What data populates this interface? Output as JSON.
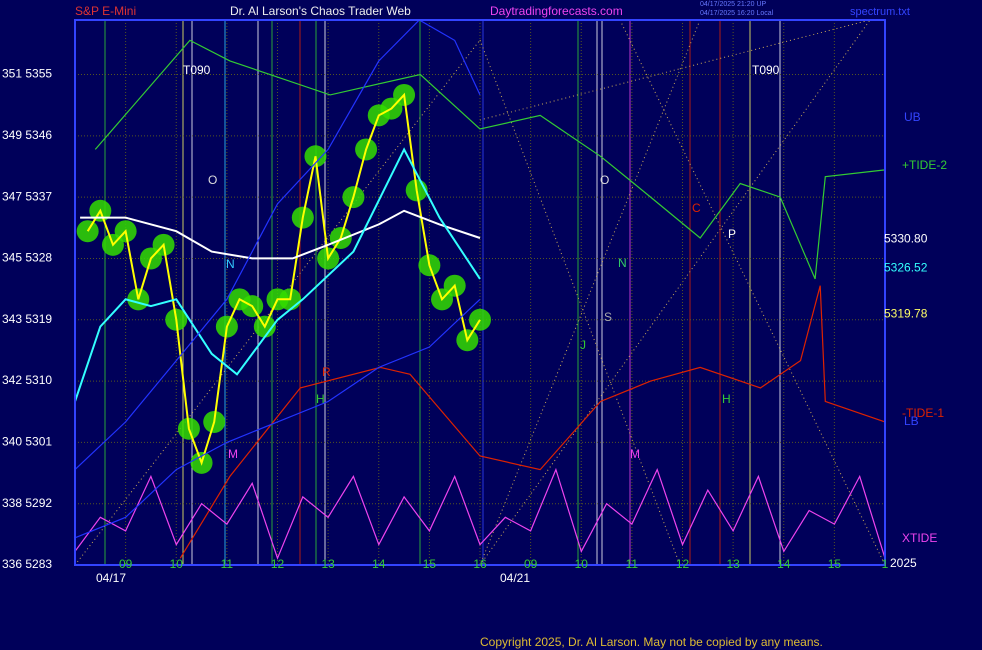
{
  "chart_data": {
    "type": "line",
    "symbol": "S&P E-Mini",
    "title": "Dr. Al Larson's Chaos Trader Web",
    "site": "Daytradingforecasts.com",
    "stamps": [
      "04/17/2025 21:20 UP",
      "04/17/2025 16:20 Local"
    ],
    "file": "spectrum.txt",
    "copyright": "Copyright 2025, Dr. Al Larson. May not be copied by any means.",
    "date_labels": [
      "04/17",
      "04/21"
    ],
    "year": "2025",
    "xlim": [
      0,
      16
    ],
    "ylim": [
      5283,
      5363
    ],
    "grid": true,
    "xticks": [
      {
        "value": 1,
        "label": "09"
      },
      {
        "value": 2,
        "label": "10"
      },
      {
        "value": 3,
        "label": "11"
      },
      {
        "value": 4,
        "label": "12"
      },
      {
        "value": 5,
        "label": "13"
      },
      {
        "value": 6,
        "label": "14"
      },
      {
        "value": 7,
        "label": "15"
      },
      {
        "value": 8,
        "label": "16"
      },
      {
        "value": 9,
        "label": "09"
      },
      {
        "value": 10,
        "label": "10"
      },
      {
        "value": 11,
        "label": "11"
      },
      {
        "value": 12,
        "label": "12"
      },
      {
        "value": 13,
        "label": "13"
      },
      {
        "value": 14,
        "label": "14"
      },
      {
        "value": 15,
        "label": "15"
      },
      {
        "value": 16,
        "label": "1"
      }
    ],
    "yticks": [
      {
        "value": 5283,
        "label": "336 5283"
      },
      {
        "value": 5292,
        "label": "338 5292"
      },
      {
        "value": 5301,
        "label": "340 5301"
      },
      {
        "value": 5310,
        "label": "342 5310"
      },
      {
        "value": 5319,
        "label": "343 5319"
      },
      {
        "value": 5328,
        "label": "345 5328"
      },
      {
        "value": 5337,
        "label": "347 5337"
      },
      {
        "value": 5346,
        "label": "349 5346"
      },
      {
        "value": 5355,
        "label": "351 5355"
      }
    ],
    "last_values": [
      {
        "value": 5330.8,
        "label": "5330.80",
        "color": "#ffffff"
      },
      {
        "value": 5326.52,
        "label": "5326.52",
        "color": "#33ffff"
      },
      {
        "value": 5319.78,
        "label": "5319.78",
        "color": "#ffff66"
      }
    ],
    "annotations": [
      "T090",
      "T090",
      "O",
      "O",
      "C",
      "P",
      "N",
      "N",
      "S",
      "J",
      "H",
      "H",
      "R",
      "M",
      "M"
    ],
    "series": [
      {
        "color": "#ffff00",
        "x": [
          0.25,
          0.5,
          0.75,
          1,
          1.25,
          1.5,
          1.75,
          2,
          2.25,
          2.5,
          2.75,
          3,
          3.25,
          3.5,
          3.75,
          4,
          4.25,
          4.5,
          4.75,
          5,
          5.25,
          5.5,
          5.75,
          6,
          6.25,
          6.5,
          6.75,
          7,
          7.25,
          7.5,
          7.75,
          8
        ],
        "values": [
          5332,
          5335,
          5330,
          5332,
          5322,
          5328,
          5330,
          5319,
          5303,
          5298,
          5304,
          5318,
          5322,
          5321,
          5318,
          5322,
          5322,
          5334,
          5343,
          5328,
          5331,
          5337,
          5344,
          5349,
          5350,
          5352,
          5338,
          5327,
          5322,
          5324,
          5316,
          5319
        ]
      },
      {
        "color": "#ffffff",
        "x": [
          0.1,
          1,
          2,
          2.7,
          3.5,
          4.3,
          5,
          6,
          6.5,
          7.2,
          8
        ],
        "values": [
          5334,
          5334,
          5332,
          5329,
          5328,
          5328,
          5330,
          5333,
          5335,
          5333,
          5331
        ]
      },
      {
        "color": "#33ffff",
        "x": [
          0,
          0.5,
          1,
          1.5,
          2,
          2.7,
          3.2,
          4,
          4.5,
          5.5,
          6.5,
          7.2,
          8
        ],
        "values": [
          5307,
          5318,
          5322,
          5321,
          5322,
          5314,
          5311,
          5319,
          5322,
          5329,
          5344,
          5334,
          5325
        ]
      },
      {
        "name": "+TIDE-2",
        "color": "#33cc33",
        "x": [
          0.4,
          2.27,
          3.06,
          5.04,
          6.82,
          8,
          9.19,
          10.38,
          11.37,
          12.35,
          13.14,
          13.93,
          14.62,
          14.82,
          16
        ],
        "values": [
          5344,
          5360,
          5357,
          5352,
          5355,
          5347,
          5349,
          5343,
          5337,
          5331,
          5339,
          5337,
          5325,
          5340,
          5341
        ]
      },
      {
        "name": "-TIDE-1",
        "color": "#dd2200",
        "x": [
          2.08,
          3.06,
          4.45,
          6.03,
          6.62,
          8,
          9.19,
          10.38,
          11.37,
          12.35,
          13.54,
          14.33,
          14.72,
          14.82,
          16
        ],
        "values": [
          5284,
          5296,
          5309,
          5312,
          5311,
          5299,
          5297,
          5307,
          5310,
          5312,
          5309,
          5313,
          5324,
          5307,
          5304
        ]
      },
      {
        "name": "XTIDE",
        "color": "#ee44ee",
        "x": [
          0,
          0.5,
          1,
          1.5,
          2,
          2.5,
          3,
          3.5,
          4,
          4.5,
          5,
          5.5,
          6,
          6.5,
          7,
          7.5,
          8,
          8.5,
          9,
          9.5,
          10,
          10.5,
          11,
          11.5,
          12,
          12.5,
          13,
          13.5,
          14,
          14.5,
          15,
          15.5,
          16
        ],
        "values": [
          5285,
          5290,
          5288,
          5296,
          5286,
          5292,
          5289,
          5295,
          5284,
          5293,
          5290,
          5296,
          5286,
          5293,
          5288,
          5296,
          5286,
          5290,
          5288,
          5297,
          5285,
          5292,
          5289,
          5297,
          5286,
          5294,
          5288,
          5296,
          5285,
          5291,
          5289,
          5296,
          5284
        ]
      },
      {
        "name": "UB",
        "color": "#2233ff",
        "x": [
          0,
          1,
          2,
          3,
          4,
          5,
          6,
          6.8,
          7.5,
          8
        ],
        "values": [
          5297,
          5304,
          5313,
          5322,
          5336,
          5344,
          5357,
          5363,
          5360,
          5352
        ]
      },
      {
        "name": "LB",
        "color": "#2233ff",
        "x": [
          0,
          1,
          2,
          3,
          4,
          5,
          6,
          7,
          8
        ],
        "values": [
          5287,
          5290,
          5297,
          5301,
          5304,
          5307,
          5312,
          5315,
          5322
        ]
      }
    ]
  }
}
